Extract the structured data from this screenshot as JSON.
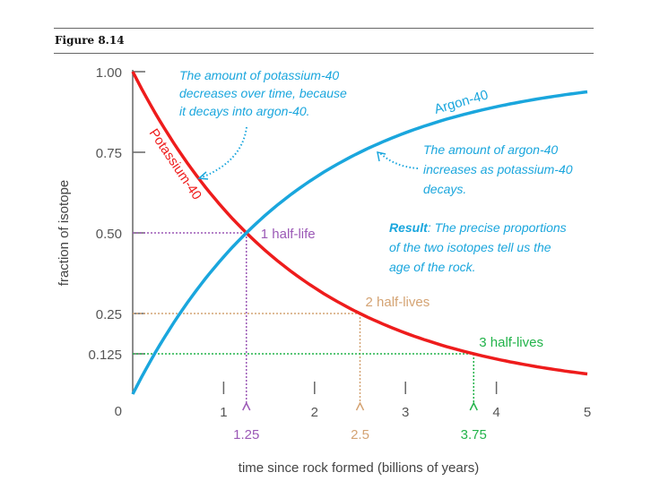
{
  "figure_label": "Figure 8.14",
  "chart_data": {
    "type": "line",
    "title": "",
    "xlabel": "time since rock formed (billions of years)",
    "ylabel": "fraction of isotope",
    "xlim": [
      0,
      5
    ],
    "ylim": [
      0,
      1
    ],
    "x_ticks": [
      "1",
      "2",
      "3",
      "4",
      "5"
    ],
    "y_ticks": [
      {
        "value": 1.0,
        "label": "1.00"
      },
      {
        "value": 0.75,
        "label": "0.75"
      },
      {
        "value": 0.5,
        "label": "0.50"
      },
      {
        "value": 0.25,
        "label": "0.25"
      },
      {
        "value": 0.125,
        "label": "0.125"
      },
      {
        "value": 0,
        "label": "0"
      }
    ],
    "half_life": 1.25,
    "series": [
      {
        "name": "Potassium-40",
        "color": "#ee1c1c",
        "formula": "0.5^(t/1.25)",
        "x": [
          0,
          0.5,
          1,
          1.25,
          1.5,
          2,
          2.5,
          3,
          3.5,
          3.75,
          4,
          4.5,
          5
        ],
        "values": [
          1,
          0.758,
          0.574,
          0.5,
          0.435,
          0.33,
          0.25,
          0.189,
          0.144,
          0.125,
          0.109,
          0.082,
          0.0625
        ]
      },
      {
        "name": "Argon-40",
        "color": "#1aa6dd",
        "formula": "1 - 0.5^(t/1.25)",
        "x": [
          0,
          0.5,
          1,
          1.25,
          1.5,
          2,
          2.5,
          3,
          3.5,
          3.75,
          4,
          4.5,
          5
        ],
        "values": [
          0,
          0.242,
          0.426,
          0.5,
          0.565,
          0.67,
          0.75,
          0.811,
          0.856,
          0.875,
          0.891,
          0.918,
          0.9375
        ]
      }
    ],
    "markers": [
      {
        "x": 1.25,
        "y": 0.5,
        "label": "1 half-life",
        "x_label": "1.25",
        "color": "#9b59b6"
      },
      {
        "x": 2.5,
        "y": 0.25,
        "label": "2 half-lives",
        "x_label": "2.5",
        "color": "#d4a373"
      },
      {
        "x": 3.75,
        "y": 0.125,
        "label": "3 half-lives",
        "x_label": "3.75",
        "color": "#22b34a"
      }
    ],
    "annotations": {
      "potassium": [
        "The amount of potassium-40",
        "decreases over time, because",
        "it decays into argon-40."
      ],
      "argon": [
        "The amount of argon-40",
        "increases as potassium-40",
        "decays."
      ],
      "result_bold": "Result",
      "result": [
        ": The precise proportions",
        "of the two isotopes tell us the",
        "age of the rock."
      ]
    }
  }
}
